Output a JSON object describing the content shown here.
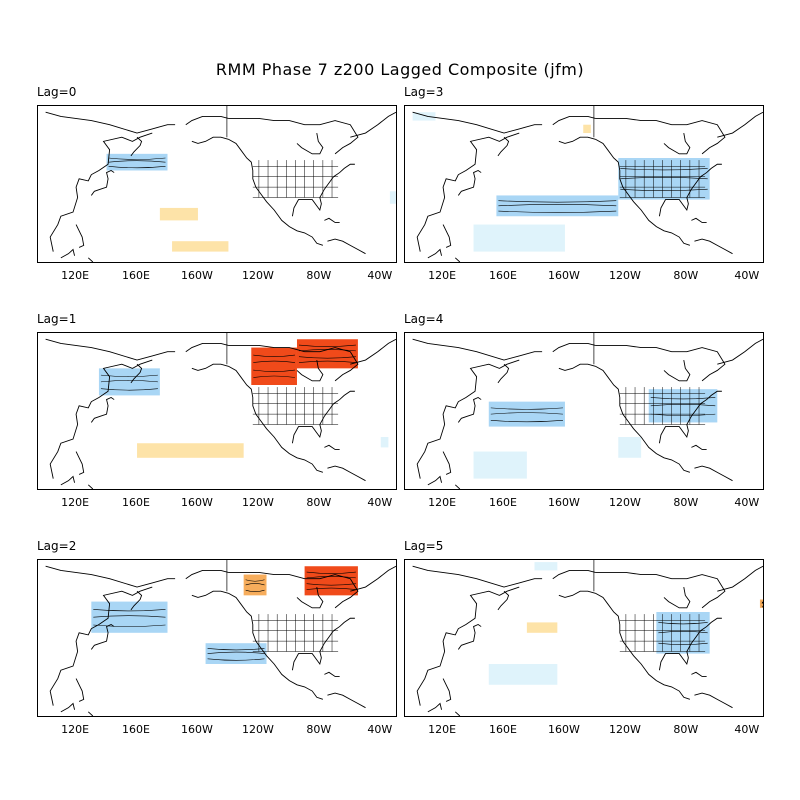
{
  "title": "RMM Phase 7 z200 Lagged Composite (jfm)",
  "lon_ticks": [
    "120E",
    "160E",
    "160W",
    "120W",
    "80W",
    "40W"
  ],
  "palette": {
    "blue_light": "#dff3fb",
    "blue_mid": "#a9d6f5",
    "blue_strong": "#6aaee8",
    "orange_light": "#fde3a8",
    "orange_mid": "#f7ad5c",
    "red_strong": "#f04a1a"
  },
  "panels": [
    {
      "label": "Lag=0",
      "anomalies": [
        {
          "sign": "negative",
          "level": "mid",
          "lon": [
            140,
            180
          ],
          "lat": [
            44,
            52
          ]
        },
        {
          "sign": "positive",
          "level": "light",
          "lon": [
            175,
            200
          ],
          "lat": [
            20,
            26
          ]
        },
        {
          "sign": "positive",
          "level": "light",
          "lon": [
            183,
            220
          ],
          "lat": [
            5,
            10
          ]
        },
        {
          "sign": "negative",
          "level": "light",
          "lon": [
            -34,
            -30
          ],
          "lat": [
            28,
            34
          ]
        }
      ]
    },
    {
      "label": "Lag=3",
      "anomalies": [
        {
          "sign": "negative",
          "level": "light",
          "lon": [
            100,
            115
          ],
          "lat": [
            68,
            72
          ]
        },
        {
          "sign": "positive",
          "level": "light",
          "lon": [
            -148,
            -143
          ],
          "lat": [
            62,
            66
          ]
        },
        {
          "sign": "negative",
          "level": "mid",
          "lon": [
            -125,
            -65
          ],
          "lat": [
            30,
            50
          ]
        },
        {
          "sign": "negative",
          "level": "mid",
          "lon": [
            155,
            235
          ],
          "lat": [
            22,
            32
          ]
        },
        {
          "sign": "negative",
          "level": "light",
          "lon": [
            140,
            200
          ],
          "lat": [
            5,
            18
          ]
        }
      ]
    },
    {
      "label": "Lag=1",
      "anomalies": [
        {
          "sign": "negative",
          "level": "mid",
          "lon": [
            135,
            175
          ],
          "lat": [
            45,
            58
          ]
        },
        {
          "sign": "positive",
          "level": "strong",
          "lon": [
            -125,
            -95
          ],
          "lat": [
            50,
            68
          ]
        },
        {
          "sign": "positive",
          "level": "strong",
          "lon": [
            -95,
            -55
          ],
          "lat": [
            58,
            72
          ]
        },
        {
          "sign": "positive",
          "level": "light",
          "lon": [
            160,
            230
          ],
          "lat": [
            15,
            22
          ]
        },
        {
          "sign": "negative",
          "level": "light",
          "lon": [
            -40,
            -35
          ],
          "lat": [
            20,
            25
          ]
        }
      ]
    },
    {
      "label": "Lag=4",
      "anomalies": [
        {
          "sign": "negative",
          "level": "mid",
          "lon": [
            -105,
            -60
          ],
          "lat": [
            32,
            48
          ]
        },
        {
          "sign": "negative",
          "level": "mid",
          "lon": [
            150,
            200
          ],
          "lat": [
            30,
            42
          ]
        },
        {
          "sign": "negative",
          "level": "light",
          "lon": [
            140,
            175
          ],
          "lat": [
            5,
            18
          ]
        },
        {
          "sign": "negative",
          "level": "light",
          "lon": [
            -125,
            -110
          ],
          "lat": [
            15,
            25
          ]
        }
      ]
    },
    {
      "label": "Lag=2",
      "anomalies": [
        {
          "sign": "negative",
          "level": "mid",
          "lon": [
            130,
            180
          ],
          "lat": [
            40,
            55
          ]
        },
        {
          "sign": "positive",
          "level": "mid",
          "lon": [
            -130,
            -115
          ],
          "lat": [
            58,
            68
          ]
        },
        {
          "sign": "positive",
          "level": "strong",
          "lon": [
            -90,
            -55
          ],
          "lat": [
            58,
            72
          ]
        },
        {
          "sign": "negative",
          "level": "mid",
          "lon": [
            205,
            245
          ],
          "lat": [
            25,
            35
          ]
        }
      ]
    },
    {
      "label": "Lag=5",
      "anomalies": [
        {
          "sign": "negative",
          "level": "light",
          "lon": [
            -180,
            -165
          ],
          "lat": [
            70,
            74
          ]
        },
        {
          "sign": "negative",
          "level": "mid",
          "lon": [
            -100,
            -65
          ],
          "lat": [
            30,
            50
          ]
        },
        {
          "sign": "positive",
          "level": "light",
          "lon": [
            175,
            195
          ],
          "lat": [
            40,
            45
          ]
        },
        {
          "sign": "negative",
          "level": "light",
          "lon": [
            150,
            195
          ],
          "lat": [
            15,
            25
          ]
        },
        {
          "sign": "positive",
          "level": "mid",
          "lon": [
            -32,
            -28
          ],
          "lat": [
            52,
            56
          ]
        }
      ]
    }
  ]
}
